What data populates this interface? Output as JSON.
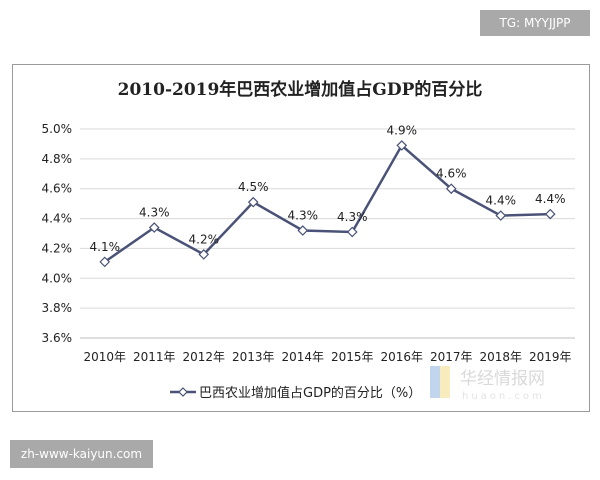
{
  "badges": {
    "top_right": "TG: MYYJJPP",
    "bottom_left": "zh-www-kaiyun.com"
  },
  "watermark": {
    "cn": "华经情报网",
    "en": "huaon.com"
  },
  "colors": {
    "line": "#4a5377",
    "grid": "#d9d9d9",
    "marker_fill": "#ffffff"
  },
  "chart_data": {
    "type": "line",
    "title": "2010-2019年巴西农业增加值占GDP的百分比",
    "categories": [
      "2010年",
      "2011年",
      "2012年",
      "2013年",
      "2014年",
      "2015年",
      "2016年",
      "2017年",
      "2018年",
      "2019年"
    ],
    "series": [
      {
        "name": "巴西农业增加值占GDP的百分比（%）",
        "values": [
          4.11,
          4.34,
          4.16,
          4.51,
          4.32,
          4.31,
          4.89,
          4.6,
          4.42,
          4.43
        ],
        "data_labels": [
          "4.1%",
          "4.3%",
          "4.2%",
          "4.5%",
          "4.3%",
          "4.3%",
          "4.9%",
          "4.6%",
          "4.4%",
          "4.4%"
        ],
        "marker": "diamond-open"
      }
    ],
    "ylim": [
      3.6,
      5.0
    ],
    "yticks": [
      "3.6%",
      "3.8%",
      "4.0%",
      "4.2%",
      "4.4%",
      "4.6%",
      "4.8%",
      "5.0%"
    ],
    "grid": true,
    "legend": "bottom-center"
  }
}
